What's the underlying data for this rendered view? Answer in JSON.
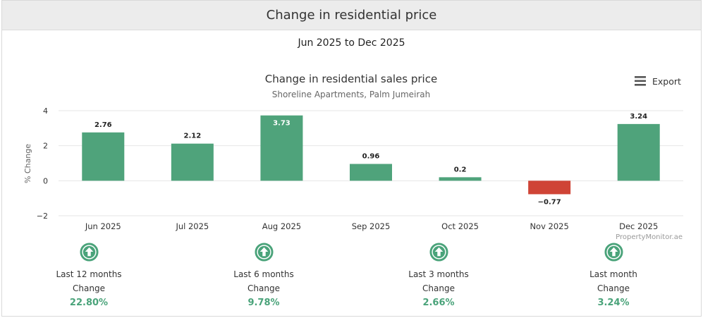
{
  "header": {
    "title": "Change in residential price"
  },
  "period": "Jun 2025 to Dec 2025",
  "export_label": "Export",
  "watermark": "PropertyMonitor.ae",
  "colors": {
    "positive": "#4fa37b",
    "negative": "#cf4436",
    "summary": "#4aa37a"
  },
  "chart_data": {
    "type": "bar",
    "title": "Change in residential sales price",
    "subtitle": "Shoreline Apartments, Palm Jumeirah",
    "ylabel": "% Change",
    "xlabel": "",
    "ylim": [
      -2,
      4
    ],
    "yticks": [
      "4",
      "2",
      "0",
      "−2"
    ],
    "categories": [
      "Jun 2025",
      "Jul 2025",
      "Aug 2025",
      "Sep 2025",
      "Oct 2025",
      "Nov 2025",
      "Dec 2025"
    ],
    "values": [
      2.76,
      2.12,
      3.73,
      0.96,
      0.2,
      -0.77,
      3.24
    ],
    "labels": [
      "2.76",
      "2.12",
      "3.73",
      "0.96",
      "0.2",
      "−0.77",
      "3.24"
    ],
    "grid": true
  },
  "summary": [
    {
      "period": "Last 12 months",
      "label": "Change",
      "value": "22.80%"
    },
    {
      "period": "Last 6 months",
      "label": "Change",
      "value": "9.78%"
    },
    {
      "period": "Last 3 months",
      "label": "Change",
      "value": "2.66%"
    },
    {
      "period": "Last month",
      "label": "Change",
      "value": "3.24%"
    }
  ]
}
